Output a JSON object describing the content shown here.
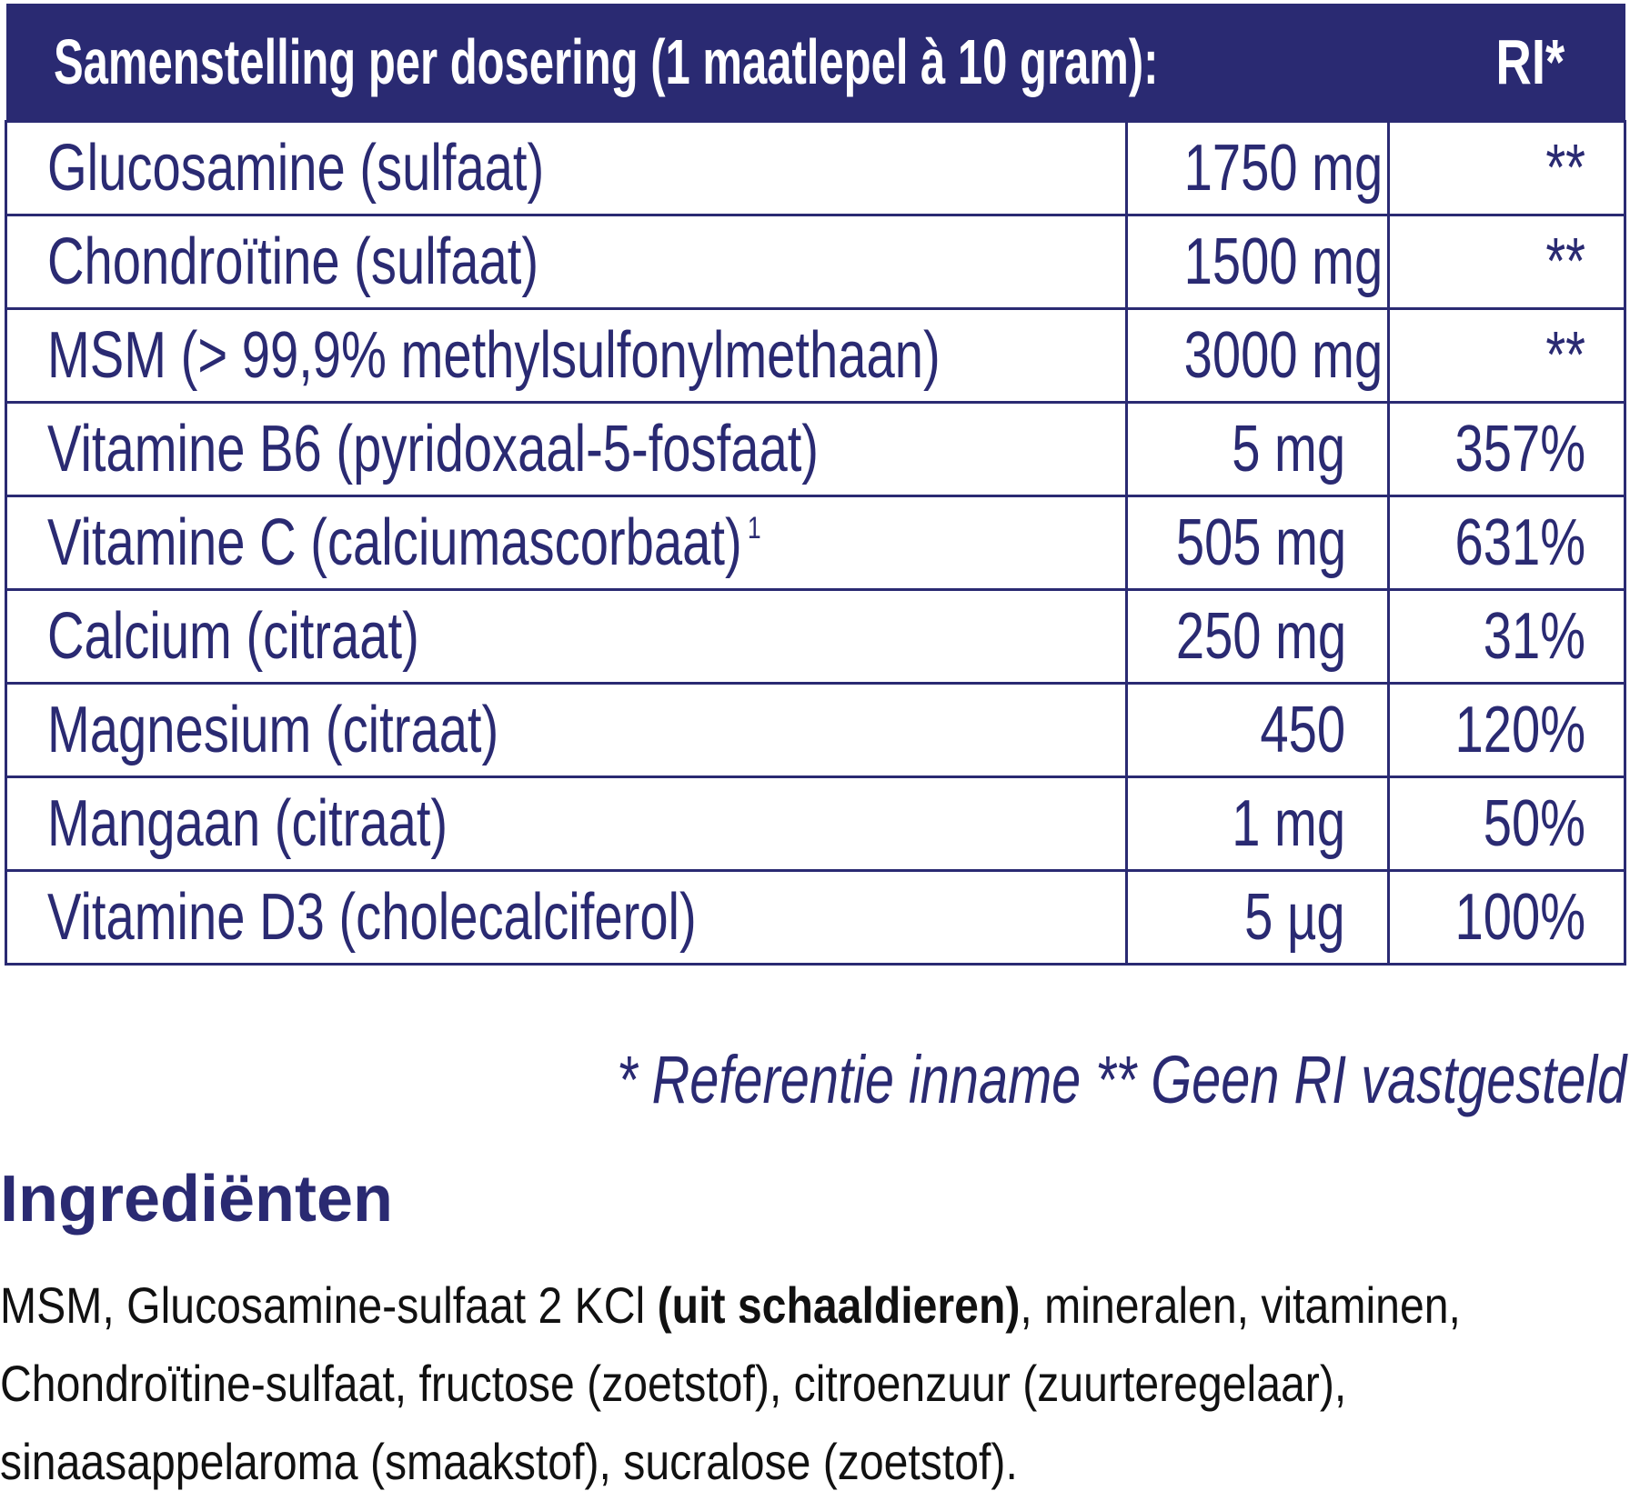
{
  "table": {
    "header": {
      "title": "Samenstelling per dosering (1 maatlepel à 10 gram):",
      "ri": "RI*"
    },
    "rows": [
      {
        "name": "Glucosamine (sulfaat)",
        "sup": "",
        "amount": "1750 mg",
        "ri": "**"
      },
      {
        "name": "Chondroïtine (sulfaat)",
        "sup": "",
        "amount": "1500 mg",
        "ri": "**"
      },
      {
        "name": "MSM (> 99,9% methylsulfonylmethaan)",
        "sup": "",
        "amount": "3000 mg",
        "ri": "**"
      },
      {
        "name": "Vitamine B6 (pyridoxaal-5-fosfaat)",
        "sup": "",
        "amount": "5 mg",
        "ri": "357%"
      },
      {
        "name": "Vitamine C (calciumascorbaat)",
        "sup": "1",
        "amount": "505 mg",
        "ri": "631%"
      },
      {
        "name": "Calcium (citraat)",
        "sup": "",
        "amount": "250 mg",
        "ri": "31%"
      },
      {
        "name": "Magnesium (citraat)",
        "sup": "",
        "amount": "450",
        "ri": "120%"
      },
      {
        "name": "Mangaan (citraat)",
        "sup": "",
        "amount": "1 mg",
        "ri": "50%"
      },
      {
        "name": "Vitamine D3 (cholecalciferol)",
        "sup": "",
        "amount": "5 µg",
        "ri": "100%"
      }
    ]
  },
  "footnote": "* Referentie inname   ** Geen RI vastgesteld",
  "ingredients": {
    "heading": "Ingrediënten",
    "text_before": "MSM, Glucosamine-sulfaat 2 KCl ",
    "bold": "(uit schaaldieren)",
    "text_after": ", mineralen, vitaminen, Chondroïtine-sulfaat, fructose (zoetstof), citroenzuur (zuurteregelaar), sinaasappelaroma (smaakstof), sucralose (zoetstof)."
  },
  "colors": {
    "brand": "#2a2a72"
  }
}
